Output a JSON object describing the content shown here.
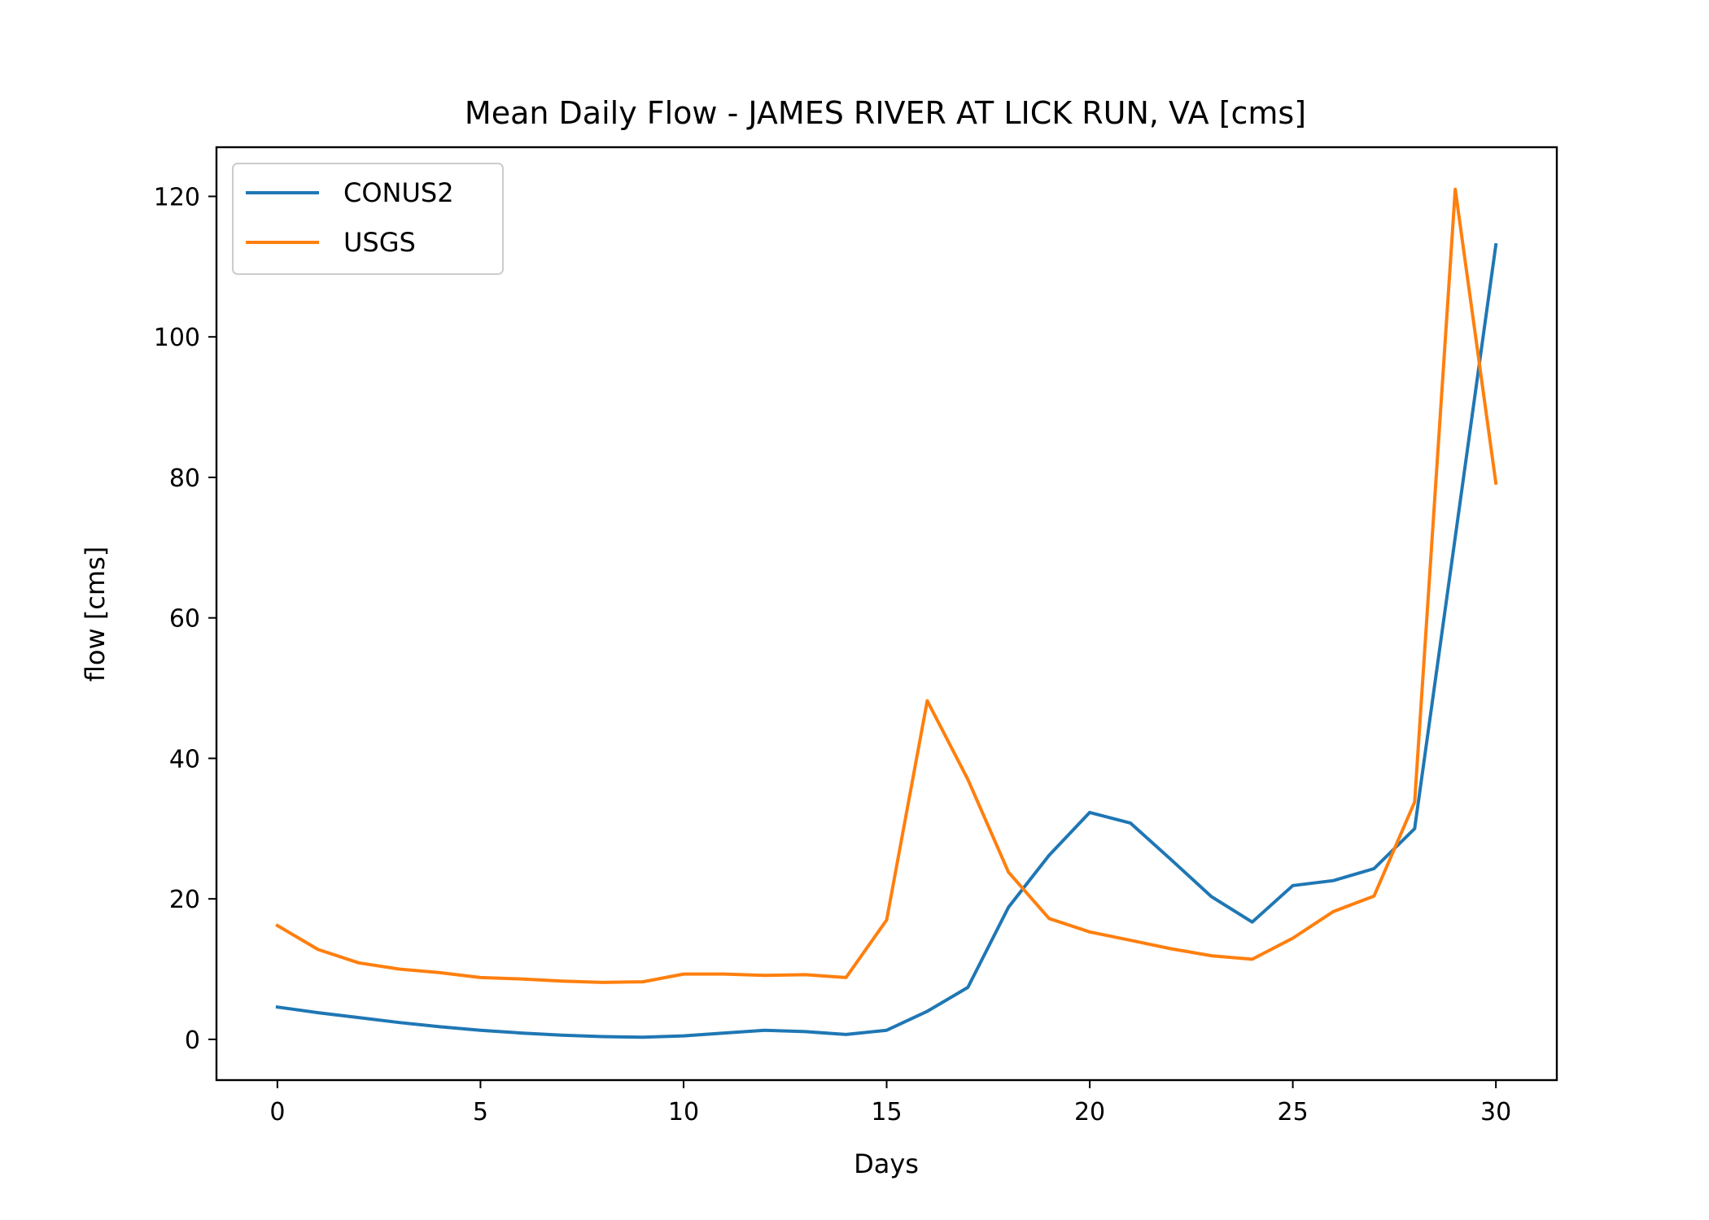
{
  "chart_data": {
    "type": "line",
    "title": "Mean Daily Flow - JAMES RIVER AT LICK RUN, VA [cms]",
    "xlabel": "Days",
    "ylabel": "flow [cms]",
    "xlim": [
      -1.5,
      31.5
    ],
    "ylim": [
      -5.8,
      127
    ],
    "xticks": [
      0,
      5,
      10,
      15,
      20,
      25,
      30
    ],
    "yticks": [
      0,
      20,
      40,
      60,
      80,
      100,
      120
    ],
    "legend_position": "top-left",
    "grid": false,
    "x": [
      0,
      1,
      2,
      3,
      4,
      5,
      6,
      7,
      8,
      9,
      10,
      11,
      12,
      13,
      14,
      15,
      16,
      17,
      18,
      19,
      20,
      21,
      22,
      23,
      24,
      25,
      26,
      27,
      28,
      29,
      30
    ],
    "series": [
      {
        "name": "CONUS2",
        "color": "#1f77b4",
        "values": [
          4.6,
          3.8,
          3.1,
          2.4,
          1.8,
          1.3,
          0.9,
          0.6,
          0.4,
          0.3,
          0.5,
          0.9,
          1.3,
          1.1,
          0.7,
          1.3,
          4.0,
          7.4,
          18.8,
          26.2,
          32.3,
          30.8,
          25.6,
          20.3,
          16.7,
          21.9,
          22.6,
          24.3,
          30.0,
          71.5,
          113.1
        ]
      },
      {
        "name": "USGS",
        "color": "#ff7f0e",
        "values": [
          16.2,
          12.8,
          10.9,
          10.0,
          9.5,
          8.8,
          8.6,
          8.3,
          8.1,
          8.2,
          9.3,
          9.3,
          9.1,
          9.2,
          8.8,
          17.0,
          48.2,
          37.0,
          23.8,
          17.2,
          15.3,
          14.1,
          12.9,
          11.9,
          11.4,
          14.4,
          18.2,
          20.4,
          33.8,
          121.0,
          79.2
        ]
      }
    ]
  }
}
